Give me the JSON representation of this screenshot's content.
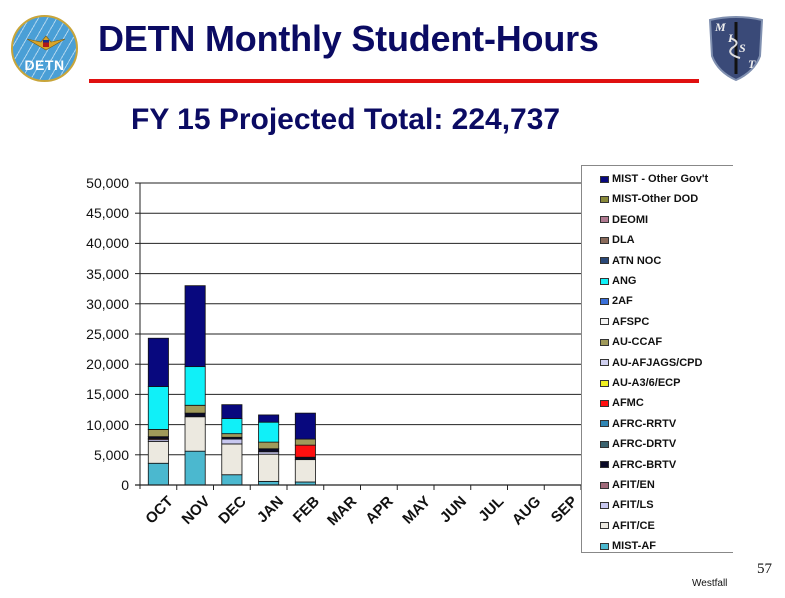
{
  "header": {
    "title": "DETN Monthly Student-Hours",
    "subtitle": "FY 15 Projected Total: 224,737",
    "left_logo_text": "DETN",
    "right_logo_letters": [
      "M",
      "I",
      "S",
      "T"
    ]
  },
  "footer": {
    "page_number": "57",
    "author": "Westfall"
  },
  "colors": {
    "title": "#0b0b63",
    "rule": "#e01010"
  },
  "chart_data": {
    "type": "bar",
    "stacked": true,
    "title": "DETN Monthly Student-Hours",
    "subtitle": "FY 15 Projected Total: 224,737",
    "xlabel": "",
    "ylabel": "",
    "ylim": [
      0,
      50000
    ],
    "yticks": [
      "0",
      "5,000",
      "10,000",
      "15,000",
      "20,000",
      "25,000",
      "30,000",
      "35,000",
      "40,000",
      "45,000",
      "50,000"
    ],
    "grid": "horizontal",
    "legend_position": "right",
    "categories": [
      "OCT",
      "NOV",
      "DEC",
      "JAN",
      "FEB",
      "MAR",
      "APR",
      "MAY",
      "JUN",
      "JUL",
      "AUG",
      "SEP"
    ],
    "series": [
      {
        "name": "MIST-AF",
        "color": "#4bb8cf",
        "values": [
          3600,
          5600,
          1700,
          600,
          500,
          0,
          0,
          0,
          0,
          0,
          0,
          0
        ]
      },
      {
        "name": "AFIT/CE",
        "color": "#ece9e0",
        "values": [
          3600,
          5700,
          5100,
          4500,
          3700,
          0,
          0,
          0,
          0,
          0,
          0,
          0
        ]
      },
      {
        "name": "AFIT/LS",
        "color": "#c8c8f0",
        "values": [
          300,
          0,
          800,
          400,
          0,
          0,
          0,
          0,
          0,
          0,
          0,
          0
        ]
      },
      {
        "name": "AFIT/EN",
        "color": "#a06a7a",
        "values": [
          200,
          0,
          0,
          0,
          0,
          0,
          0,
          0,
          0,
          0,
          0,
          0
        ]
      },
      {
        "name": "AFRC-BRTV",
        "color": "#0a0a28",
        "values": [
          300,
          600,
          300,
          500,
          400,
          0,
          0,
          0,
          0,
          0,
          0,
          0
        ]
      },
      {
        "name": "AFRC-DRTV",
        "color": "#3c6470",
        "values": [
          0,
          0,
          0,
          0,
          0,
          0,
          0,
          0,
          0,
          0,
          0,
          0
        ]
      },
      {
        "name": "AFRC-RRTV",
        "color": "#2f86b4",
        "values": [
          0,
          0,
          0,
          0,
          0,
          0,
          0,
          0,
          0,
          0,
          0,
          0
        ]
      },
      {
        "name": "AFMC",
        "color": "#ff1010",
        "values": [
          0,
          0,
          0,
          0,
          2000,
          0,
          0,
          0,
          0,
          0,
          0,
          0
        ]
      },
      {
        "name": "AU-A3/6/ECP",
        "color": "#f0f020",
        "values": [
          0,
          0,
          0,
          0,
          0,
          0,
          0,
          0,
          0,
          0,
          0,
          0
        ]
      },
      {
        "name": "AU-AFJAGS/CPD",
        "color": "#d0d0f0",
        "values": [
          0,
          0,
          0,
          0,
          0,
          0,
          0,
          0,
          0,
          0,
          0,
          0
        ]
      },
      {
        "name": "AU-CCAF",
        "color": "#a09a5a",
        "values": [
          1200,
          1300,
          600,
          1100,
          1000,
          0,
          0,
          0,
          0,
          0,
          0,
          0
        ]
      },
      {
        "name": "AFSPC",
        "color": "#f4f4f4",
        "values": [
          0,
          0,
          0,
          0,
          0,
          0,
          0,
          0,
          0,
          0,
          0,
          0
        ]
      },
      {
        "name": "2AF",
        "color": "#3a70d8",
        "values": [
          0,
          0,
          0,
          0,
          0,
          0,
          0,
          0,
          0,
          0,
          0,
          0
        ]
      },
      {
        "name": "ANG",
        "color": "#10f0f8",
        "values": [
          7100,
          6400,
          2500,
          3300,
          0,
          0,
          0,
          0,
          0,
          0,
          0,
          0
        ]
      },
      {
        "name": "ATN NOC",
        "color": "#2a4878",
        "values": [
          0,
          0,
          0,
          0,
          0,
          0,
          0,
          0,
          0,
          0,
          0,
          0
        ]
      },
      {
        "name": "DLA",
        "color": "#8a6a5a",
        "values": [
          0,
          0,
          0,
          0,
          0,
          0,
          0,
          0,
          0,
          0,
          0,
          0
        ]
      },
      {
        "name": "DEOMI",
        "color": "#b07a90",
        "values": [
          0,
          0,
          0,
          0,
          0,
          0,
          0,
          0,
          0,
          0,
          0,
          0
        ]
      },
      {
        "name": "MIST-Other DOD",
        "color": "#8a8a3a",
        "values": [
          0,
          0,
          0,
          0,
          0,
          0,
          0,
          0,
          0,
          0,
          0,
          0
        ]
      },
      {
        "name": "MIST - Other Gov't",
        "color": "#08087e",
        "values": [
          8000,
          13400,
          2300,
          1200,
          4300,
          0,
          0,
          0,
          0,
          0,
          0,
          0
        ]
      }
    ],
    "totals_approx": [
      24300,
      33000,
      13300,
      11600,
      11900,
      0,
      0,
      0,
      0,
      0,
      0,
      0
    ],
    "legend": [
      "MIST - Other Gov't",
      "MIST-Other DOD",
      "DEOMI",
      "DLA",
      "ATN NOC",
      "ANG",
      "2AF",
      "AFSPC",
      "AU-CCAF",
      "AU-AFJAGS/CPD",
      "AU-A3/6/ECP",
      "AFMC",
      "AFRC-RRTV",
      "AFRC-DRTV",
      "AFRC-BRTV",
      "AFIT/EN",
      "AFIT/LS",
      "AFIT/CE",
      "MIST-AF"
    ]
  }
}
